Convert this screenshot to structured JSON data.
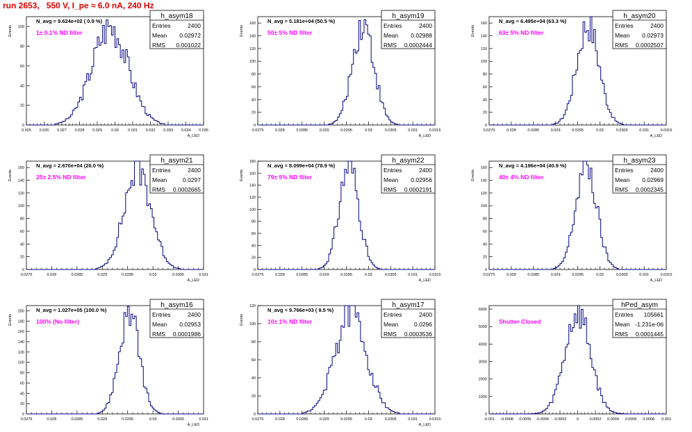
{
  "canvas_title": "run 2653,   550 V, I_pe ≈ 6.0 nA, 240 Hz",
  "colors": {
    "title": "#e00000",
    "annotation": "#ff00ff",
    "histogram": "#000080",
    "axis": "#000000"
  },
  "chart_data": [
    {
      "type": "histogram",
      "name": "h_asym18",
      "stats": {
        "entries": "2400",
        "mean": "0.02972",
        "rms": "0.001022"
      },
      "annotation": "N_avg = 9.624e+02 ( 0.9 %)",
      "filter_label": "1± 0.1% ND filter",
      "xlabel": "A_LED",
      "ylabel": "Events",
      "xlim": [
        0.025,
        0.035
      ],
      "ylim": [
        0,
        110
      ],
      "xticks": [
        "0.025",
        "0.026",
        "0.027",
        "0.028",
        "0.029",
        "0.03",
        "0.031",
        "0.032",
        "0.033",
        "0.034",
        "0.035"
      ],
      "yticks": [
        "0",
        "20",
        "40",
        "60",
        "80",
        "100"
      ],
      "dist": {
        "mean": 0.02972,
        "sigma": 0.001022,
        "peak": 100
      }
    },
    {
      "type": "histogram",
      "name": "h_asym19",
      "stats": {
        "entries": "2400",
        "mean": "0.02988",
        "rms": "0.0002444"
      },
      "annotation": "N_avg = 5.181e+04 (50.5 %)",
      "filter_label": "50± 5% ND filter",
      "xlabel": "A_LED",
      "ylabel": "Events",
      "xlim": [
        0.0275,
        0.0315
      ],
      "ylim": [
        0,
        170
      ],
      "xticks": [
        "0.0275",
        "0.028",
        "0.0285",
        "0.029",
        "0.0295",
        "0.03",
        "0.0305",
        "0.031",
        "0.0315"
      ],
      "yticks": [
        "0",
        "20",
        "40",
        "60",
        "80",
        "100",
        "120",
        "140",
        "160"
      ],
      "dist": {
        "mean": 0.02988,
        "sigma": 0.0002444,
        "peak": 160
      }
    },
    {
      "type": "histogram",
      "name": "h_asym20",
      "stats": {
        "entries": "2400",
        "mean": "0.02973",
        "rms": "0.0002507"
      },
      "annotation": "N_avg = 6.495e+04 (63.3 %)",
      "filter_label": "63± 5% ND filter",
      "xlabel": "A_LED",
      "ylabel": "Events",
      "xlim": [
        0.0275,
        0.0315
      ],
      "ylim": [
        0,
        170
      ],
      "xticks": [
        "0.0275",
        "0.028",
        "0.0285",
        "0.029",
        "0.0295",
        "0.03",
        "0.0305",
        "0.031",
        "0.0315"
      ],
      "yticks": [
        "0",
        "20",
        "40",
        "60",
        "80",
        "100",
        "120",
        "140",
        "160"
      ],
      "dist": {
        "mean": 0.02973,
        "sigma": 0.0002507,
        "peak": 160
      }
    },
    {
      "type": "histogram",
      "name": "h_asym21",
      "stats": {
        "entries": "2400",
        "mean": "0.0297",
        "rms": "0.0002665"
      },
      "annotation": "N_avg = 2.670e+04 (26.0 %)",
      "filter_label": "25± 2.5% ND filter",
      "xlabel": "A_LED",
      "ylabel": "Events",
      "xlim": [
        0.0275,
        0.031
      ],
      "ylim": [
        0,
        170
      ],
      "xticks": [
        "0.0275",
        "0.028",
        "0.0285",
        "0.029",
        "0.0295",
        "0.03",
        "0.0305",
        "0.031"
      ],
      "yticks": [
        "0",
        "20",
        "40",
        "60",
        "80",
        "100",
        "120",
        "140",
        "160"
      ],
      "dist": {
        "mean": 0.0297,
        "sigma": 0.0002665,
        "peak": 158
      }
    },
    {
      "type": "histogram",
      "name": "h_asym22",
      "stats": {
        "entries": "2400",
        "mean": "0.02956",
        "rms": "0.0002191"
      },
      "annotation": "N_avg = 8.099e+04 (78.9 %)",
      "filter_label": "79± 5% ND filter",
      "xlabel": "A_LED",
      "ylabel": "Events",
      "xlim": [
        0.0275,
        0.0315
      ],
      "ylim": [
        0,
        180
      ],
      "xticks": [
        "0.0275",
        "0.028",
        "0.0285",
        "0.029",
        "0.0295",
        "0.03",
        "0.0305",
        "0.031",
        "0.0315"
      ],
      "yticks": [
        "0",
        "20",
        "40",
        "60",
        "80",
        "100",
        "120",
        "140",
        "160",
        "180"
      ],
      "dist": {
        "mean": 0.02956,
        "sigma": 0.0002191,
        "peak": 175
      }
    },
    {
      "type": "histogram",
      "name": "h_asym23",
      "stats": {
        "entries": "2400",
        "mean": "0.02969",
        "rms": "0.0002345"
      },
      "annotation": "N_avg = 4.196e+04 (40.9 %)",
      "filter_label": "40± 4% ND filter",
      "xlabel": "A_LED",
      "ylabel": "Events",
      "xlim": [
        0.0275,
        0.0315
      ],
      "ylim": [
        0,
        170
      ],
      "xticks": [
        "0.0275",
        "0.028",
        "0.0285",
        "0.029",
        "0.0295",
        "0.03",
        "0.0305",
        "0.031",
        "0.0315"
      ],
      "yticks": [
        "0",
        "20",
        "40",
        "60",
        "80",
        "100",
        "120",
        "140",
        "160"
      ],
      "dist": {
        "mean": 0.02969,
        "sigma": 0.0002345,
        "peak": 165
      }
    },
    {
      "type": "histogram",
      "name": "h_asym16",
      "stats": {
        "entries": "2400",
        "mean": "0.02953",
        "rms": "0.0001986"
      },
      "annotation": "N_avg = 1.027e+05 (100.0 %)",
      "filter_label": "100% (No filter)",
      "xlabel": "A_LED",
      "ylabel": "Events",
      "xlim": [
        0.0275,
        0.031
      ],
      "ylim": [
        0,
        210
      ],
      "xticks": [
        "0.0275",
        "0.028",
        "0.0285",
        "0.029",
        "0.0295",
        "0.03",
        "0.0305",
        "0.031"
      ],
      "yticks": [
        "0",
        "20",
        "40",
        "60",
        "80",
        "100",
        "120",
        "140",
        "160",
        "180",
        "200"
      ],
      "dist": {
        "mean": 0.02953,
        "sigma": 0.0001986,
        "peak": 195
      }
    },
    {
      "type": "histogram",
      "name": "h_asym17",
      "stats": {
        "entries": "2400",
        "mean": "0.0296",
        "rms": "0.0003536"
      },
      "annotation": "N_avg = 9.766e+03 ( 9.5 %)",
      "filter_label": "10± 1% ND filter",
      "xlabel": "A_LED",
      "ylabel": "Events",
      "xlim": [
        0.0275,
        0.0315
      ],
      "ylim": [
        0,
        120
      ],
      "xticks": [
        "0.0275",
        "0.028",
        "0.0285",
        "0.029",
        "0.0295",
        "0.03",
        "0.0305",
        "0.031",
        "0.0315"
      ],
      "yticks": [
        "0",
        "20",
        "40",
        "60",
        "80",
        "100",
        "120"
      ],
      "dist": {
        "mean": 0.0296,
        "sigma": 0.0003536,
        "peak": 112
      }
    },
    {
      "type": "histogram",
      "name": "hPed_asym",
      "stats": {
        "entries": "105661",
        "mean": "-1.231e-06",
        "rms": "0.0001445"
      },
      "annotation": "",
      "filter_label": "Shutter Closed",
      "xlabel": "",
      "ylabel": "",
      "xlim": [
        -0.001,
        0.001
      ],
      "ylim": [
        0,
        6200
      ],
      "xticks": [
        "-0.001",
        "-0.0008",
        "-0.0006",
        "-0.0004",
        "-0.0002",
        "0",
        "0.0002",
        "0.0004",
        "0.0006",
        "0.0008",
        "0.001"
      ],
      "yticks": [
        "0",
        "1000",
        "2000",
        "3000",
        "4000",
        "5000",
        "6000"
      ],
      "dist": {
        "mean": 0.0,
        "sigma": 0.0001445,
        "peak": 5800
      }
    }
  ]
}
